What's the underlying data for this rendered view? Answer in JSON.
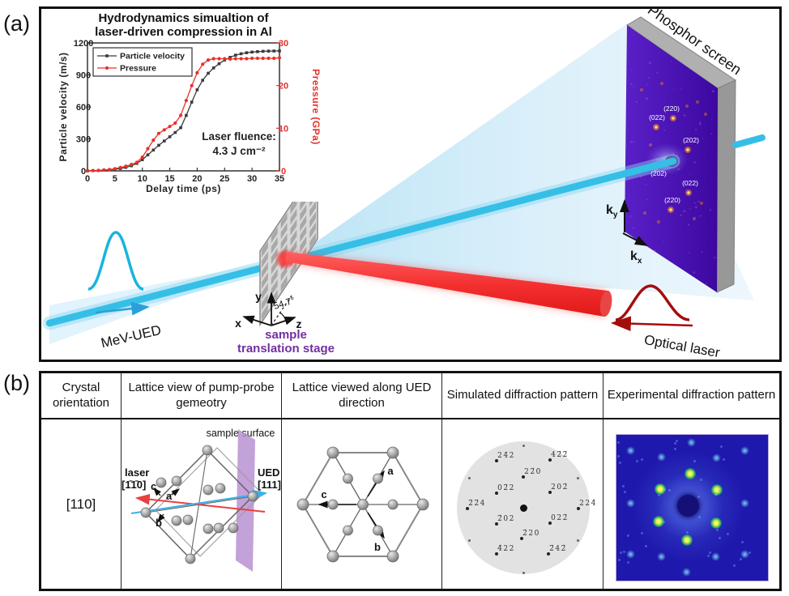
{
  "panels": {
    "a_label": "(a)",
    "b_label": "(b)"
  },
  "chart_data": {
    "type": "line",
    "title_line1": "Hydrodynamics simualtion of",
    "title_line2": "laser-driven compression in Al",
    "xlabel": "Delay time (ps)",
    "ylabel_left": "Particle velocity (m/s)",
    "ylabel_right": "Pressure (GPa)",
    "x_range": [
      0,
      35
    ],
    "y_left_range": [
      0,
      1200
    ],
    "y_right_range": [
      0,
      30
    ],
    "x_ticks": [
      0,
      5,
      10,
      15,
      20,
      25,
      30,
      35
    ],
    "y_left_ticks": [
      0,
      300,
      600,
      900,
      1200
    ],
    "y_right_ticks": [
      0,
      10,
      20,
      30
    ],
    "legend_position": "top-left",
    "annotation_line1": "Laser fluence:",
    "annotation_line2": "4.3 J cm⁻²",
    "series": [
      {
        "name": "Particle velocity",
        "axis": "left",
        "color": "#3a3a3a",
        "marker": "square",
        "x": [
          0,
          1,
          2,
          3,
          4,
          5,
          6,
          7,
          8,
          9,
          10,
          11,
          12,
          13,
          14,
          15,
          16,
          17,
          18,
          19,
          20,
          21,
          22,
          23,
          24,
          25,
          26,
          27,
          28,
          29,
          30,
          31,
          32,
          33,
          34,
          35
        ],
        "values": [
          0,
          2,
          4,
          7,
          10,
          15,
          22,
          33,
          48,
          70,
          105,
          150,
          195,
          240,
          280,
          320,
          360,
          405,
          520,
          645,
          760,
          850,
          915,
          965,
          1005,
          1040,
          1065,
          1085,
          1098,
          1108,
          1114,
          1118,
          1121,
          1123,
          1124,
          1125
        ]
      },
      {
        "name": "Pressure",
        "axis": "right",
        "color": "#e8302a",
        "marker": "circle",
        "x": [
          0,
          1,
          2,
          3,
          4,
          5,
          6,
          7,
          8,
          9,
          10,
          11,
          12,
          13,
          14,
          15,
          16,
          17,
          18,
          19,
          20,
          21,
          22,
          23,
          24,
          25,
          26,
          27,
          28,
          29,
          30,
          31,
          32,
          33,
          34,
          35
        ],
        "values": [
          0,
          0.05,
          0.1,
          0.2,
          0.3,
          0.5,
          0.8,
          1.1,
          1.5,
          2,
          3.2,
          5.2,
          7.2,
          8.8,
          9.6,
          10.4,
          11.2,
          13,
          16.5,
          20,
          23,
          25,
          26,
          26.3,
          26.3,
          26.3,
          26.2,
          26.3,
          26.3,
          26.3,
          26.4,
          26.4,
          26.4,
          26.4,
          26.4,
          26.5
        ]
      }
    ]
  },
  "scene": {
    "phosphor_label": "Phosphor screen",
    "mev_ued_label": "MeV-UED",
    "optical_laser_label": "Optical laser",
    "stage_label_line1": "sample",
    "stage_label_line2": "translation stage",
    "angle_label": "54.7°",
    "axis_x": "x",
    "axis_y": "y",
    "axis_z": "z",
    "k_letter": "k",
    "k_sub_x": "x",
    "k_sub_y": "y",
    "screen_spots": [
      {
        "label": "(220)",
        "dot": [
          780,
          135
        ],
        "lab": [
          778,
          126
        ]
      },
      {
        "label": "(022)",
        "dot": [
          759,
          146
        ],
        "lab": [
          760,
          137
        ]
      },
      {
        "label": "(202)",
        "dot": [
          798,
          174
        ],
        "lab": [
          802,
          165
        ]
      },
      {
        "label": "(202)",
        "dot": [
          758,
          196
        ],
        "lab": [
          762,
          206
        ]
      },
      {
        "label": "(022)",
        "dot": [
          799,
          227
        ],
        "lab": [
          801,
          218
        ]
      },
      {
        "label": "(220)",
        "dot": [
          777,
          248
        ],
        "lab": [
          779,
          239
        ]
      }
    ],
    "screen_faint": [
      [
        741,
        100
      ],
      [
        810,
        115
      ],
      [
        766,
        92
      ],
      [
        806,
        259
      ],
      [
        745,
        252
      ],
      [
        762,
        263
      ],
      [
        820,
        130
      ],
      [
        752,
        168
      ],
      [
        815,
        240
      ],
      [
        797,
        120
      ]
    ]
  },
  "table": {
    "headers": [
      "Crystal orientation",
      "Lattice view of pump-probe gemeotry",
      "Lattice viewed along UED direction",
      "Simulated diffraction pattern",
      "Experimental diffraction pattern"
    ],
    "row": {
      "orientation": "[110]",
      "lattice_view": {
        "sample_surface": "sample surface",
        "laser_line1": "laser",
        "laser_line2": "[1̄1̄0]",
        "ued_line1": "UED",
        "ued_line2": "[111]",
        "axis_a": "a",
        "axis_b": "b",
        "axis_c": "c"
      },
      "hex_view": {
        "axis_a": "a",
        "axis_b": "b",
        "axis_c": "c"
      },
      "simulated": {
        "spots": [
          {
            "t": "24̄2",
            "d": [
              67,
              51
            ],
            "l": [
              79,
              45
            ]
          },
          {
            "t": "42̄2̄",
            "d": [
              133,
              50
            ],
            "l": [
              145,
              44
            ]
          },
          {
            "t": "22̄0",
            "d": [
              100,
              71
            ],
            "l": [
              112,
              65
            ]
          },
          {
            "t": "02̄2",
            "d": [
              67,
              91
            ],
            "l": [
              79,
              85
            ]
          },
          {
            "t": "202̄",
            "d": [
              133,
              90
            ],
            "l": [
              145,
              84
            ]
          },
          {
            "t": "2̄2̄4",
            "d": [
              31,
              110
            ],
            "l": [
              43,
              104
            ]
          },
          {
            "t": "224̄",
            "d": [
              168,
              110
            ],
            "l": [
              180,
              104
            ]
          },
          {
            "t": "2̄02",
            "d": [
              67,
              129
            ],
            "l": [
              79,
              123
            ]
          },
          {
            "t": "022̄",
            "d": [
              133,
              128
            ],
            "l": [
              145,
              122
            ]
          },
          {
            "t": "2̄20",
            "d": [
              98,
              147
            ],
            "l": [
              110,
              141
            ]
          },
          {
            "t": "4̄22",
            "d": [
              67,
              166
            ],
            "l": [
              79,
              160
            ]
          },
          {
            "t": "2̄42̄",
            "d": [
              131,
              166
            ],
            "l": [
              143,
              160
            ]
          }
        ],
        "unlabeled": [
          [
            100,
            32
          ],
          [
            100,
            189
          ],
          [
            33,
            72
          ],
          [
            167,
            72
          ],
          [
            33,
            149
          ],
          [
            167,
            149
          ]
        ]
      },
      "experimental": {
        "bright": [
          [
            91,
            48
          ],
          [
            54,
            67
          ],
          [
            124,
            68
          ],
          [
            52,
            107
          ],
          [
            123,
            109
          ],
          [
            87,
            130
          ]
        ],
        "dim": [
          [
            92,
            9
          ],
          [
            55,
            27
          ],
          [
            123,
            28
          ],
          [
            17,
            84
          ],
          [
            158,
            84
          ],
          [
            55,
            150
          ],
          [
            122,
            150
          ],
          [
            86,
            169
          ],
          [
            17,
            19
          ],
          [
            158,
            19
          ],
          [
            17,
            147
          ],
          [
            158,
            147
          ]
        ]
      }
    }
  }
}
